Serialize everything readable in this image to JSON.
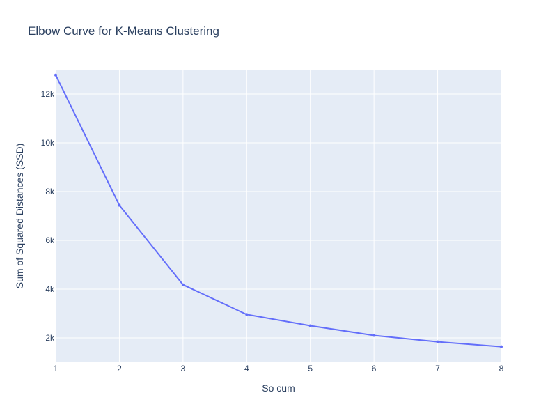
{
  "chart_data": {
    "type": "line",
    "title": "Elbow Curve for K-Means Clustering",
    "xlabel": "So cum",
    "ylabel": "Sum of Squared Distances (SSD)",
    "x": [
      1,
      2,
      3,
      4,
      5,
      6,
      7,
      8
    ],
    "series": [
      {
        "values": [
          12780,
          7440,
          4180,
          2960,
          2500,
          2100,
          1840,
          1640
        ]
      }
    ],
    "xlim": [
      1,
      8
    ],
    "ylim": [
      1000,
      13000
    ],
    "x_ticks": [
      1,
      2,
      3,
      4,
      5,
      6,
      7,
      8
    ],
    "x_tick_labels": [
      "1",
      "2",
      "3",
      "4",
      "5",
      "6",
      "7",
      "8"
    ],
    "y_ticks": [
      2000,
      4000,
      6000,
      8000,
      10000,
      12000
    ],
    "y_tick_labels": [
      "2k",
      "4k",
      "6k",
      "8k",
      "10k",
      "12k"
    ],
    "grid": true,
    "colors": {
      "plot_background": "#E5ECF6",
      "grid": "#ffffff",
      "line": "#636EFA",
      "text": "#2a3f5f"
    }
  }
}
